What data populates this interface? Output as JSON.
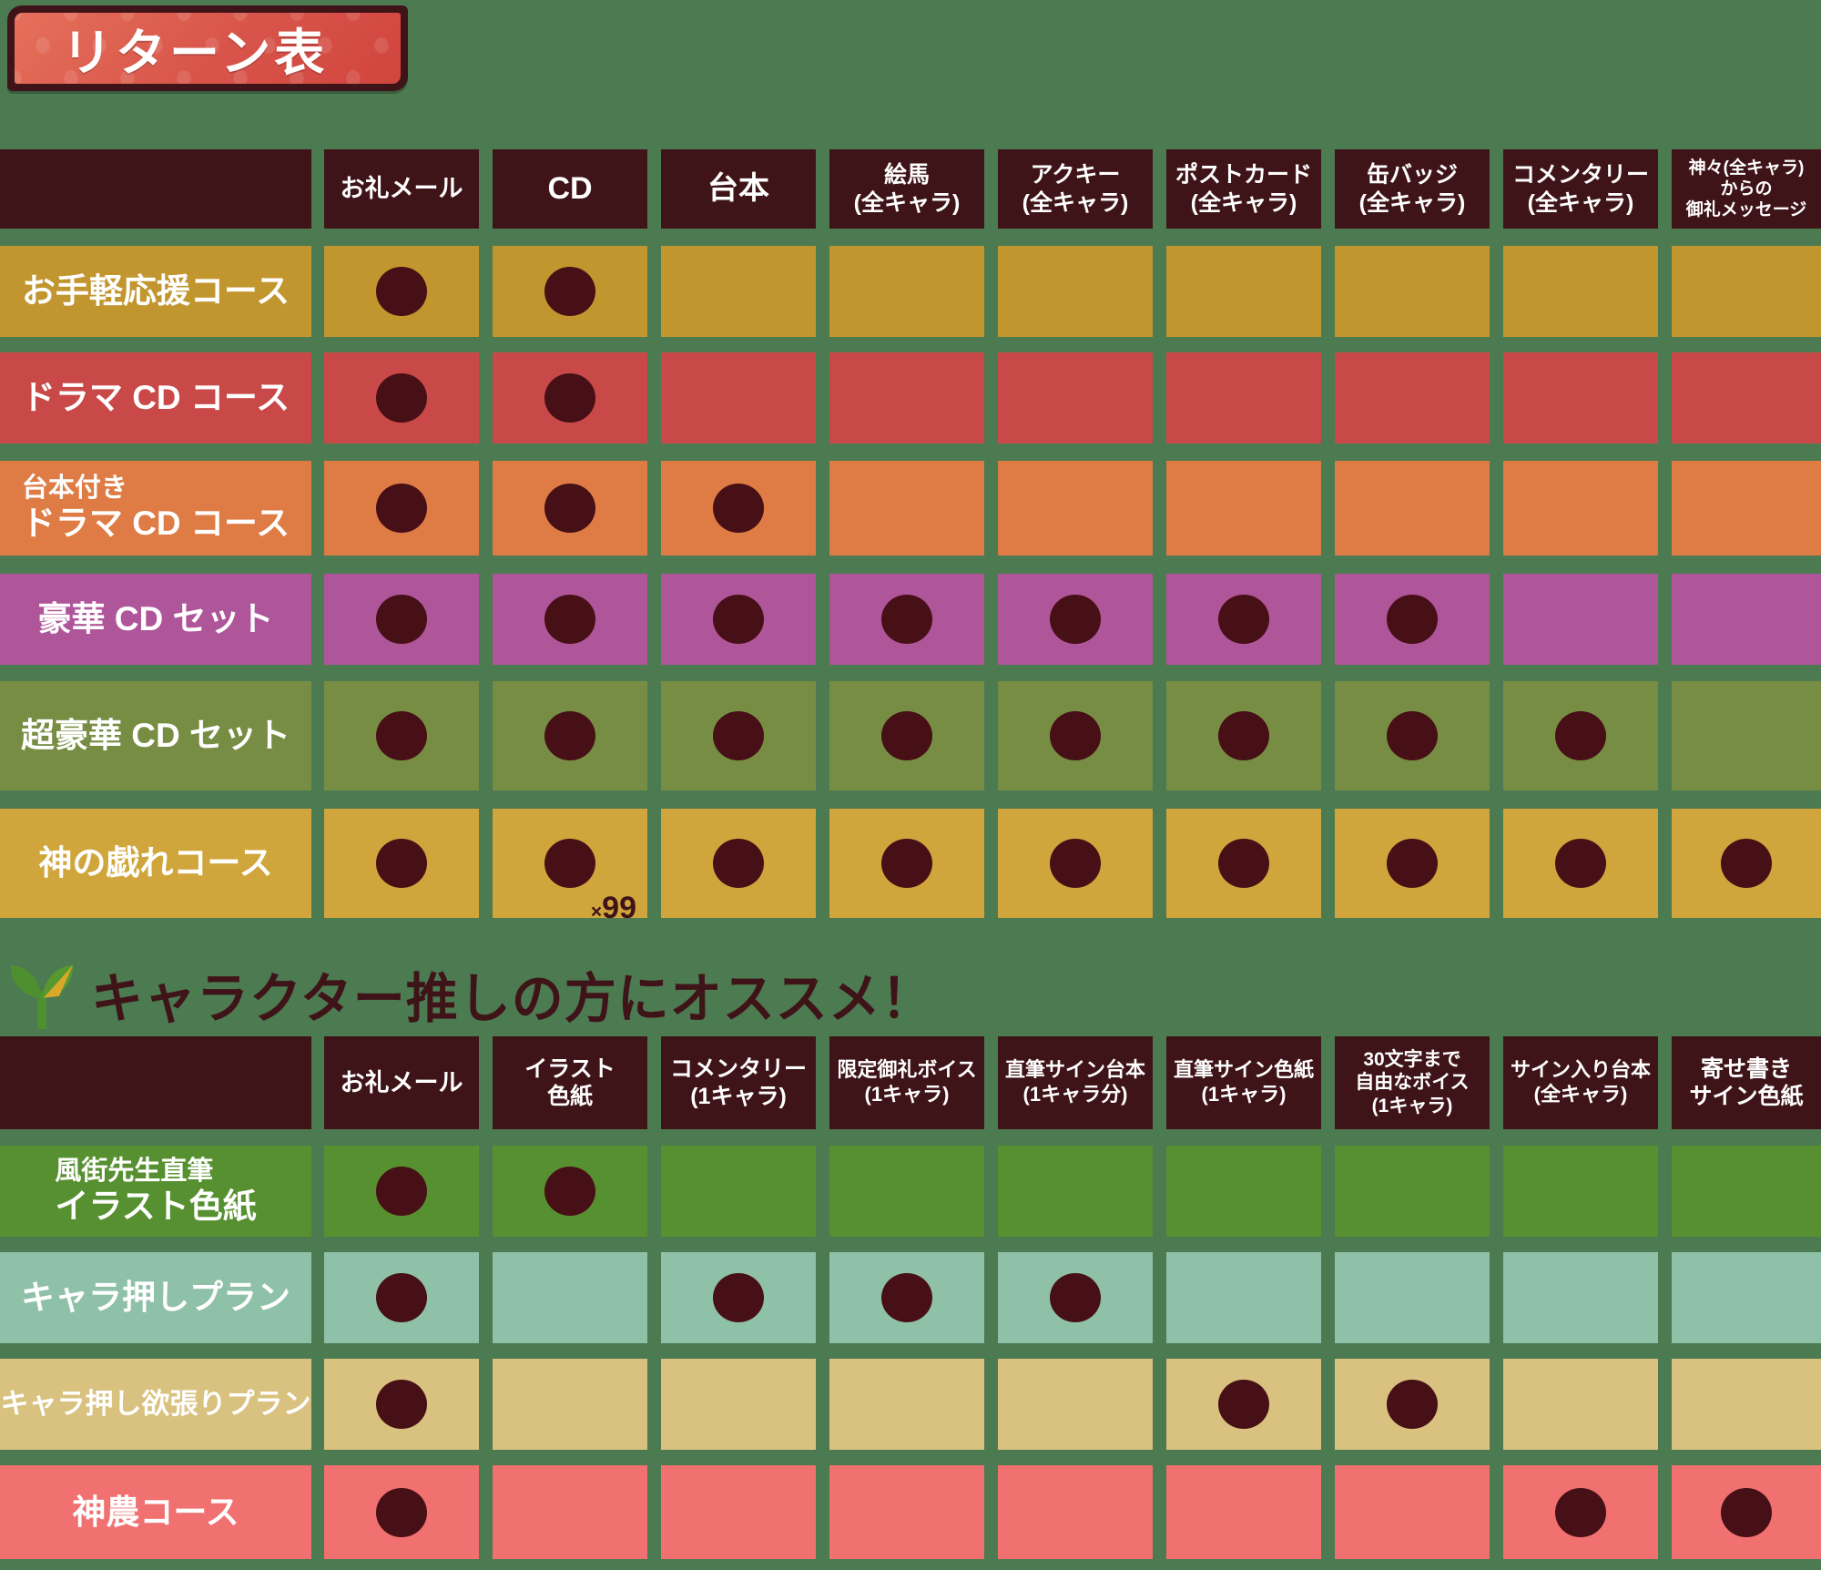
{
  "banner": {
    "title": "リターン表"
  },
  "section2": {
    "heading": "キャラクター推しの方にオススメ！",
    "icon": "sprout-icon"
  },
  "colors": {
    "page_background": "#4c7a51",
    "header_cell": "#3f1418",
    "dot": "#470f16",
    "banner_red_light": "#e5705a",
    "banner_red_dark": "#d1453e",
    "banner_frame": "#3f1418",
    "heading_text": "#3f1418",
    "sprout_green": "#4e8f2f",
    "sprout_yellow": "#d8a929"
  },
  "chart_data": [
    {
      "type": "table",
      "title": "リターン表",
      "columns": [
        {
          "lines": [
            "お礼メール"
          ]
        },
        {
          "lines": [
            "CD"
          ]
        },
        {
          "lines": [
            "台本"
          ]
        },
        {
          "lines": [
            "絵馬",
            "(全キャラ)"
          ]
        },
        {
          "lines": [
            "アクキー",
            "(全キャラ)"
          ]
        },
        {
          "lines": [
            "ポストカード",
            "(全キャラ)"
          ]
        },
        {
          "lines": [
            "缶バッジ",
            "(全キャラ)"
          ]
        },
        {
          "lines": [
            "コメンタリー",
            "(全キャラ)"
          ]
        },
        {
          "lines": [
            "神々(全キャラ)",
            "からの",
            "御礼メッセージ"
          ]
        }
      ],
      "rows": [
        {
          "label_lines": [
            "お手軽応援コース"
          ],
          "color": "#c2962f",
          "included": [
            1,
            1,
            0,
            0,
            0,
            0,
            0,
            0,
            0
          ]
        },
        {
          "label_lines": [
            "ドラマ CD コース"
          ],
          "color": "#c94848",
          "included": [
            1,
            1,
            0,
            0,
            0,
            0,
            0,
            0,
            0
          ]
        },
        {
          "label_lines": [
            "台本付き",
            "ドラマ CD コース"
          ],
          "color": "#df7b44",
          "included": [
            1,
            1,
            1,
            0,
            0,
            0,
            0,
            0,
            0
          ]
        },
        {
          "label_lines": [
            "豪華 CD セット"
          ],
          "color": "#af5599",
          "included": [
            1,
            1,
            1,
            1,
            1,
            1,
            1,
            0,
            0
          ]
        },
        {
          "label_lines": [
            "超豪華 CD セット"
          ],
          "color": "#788d44",
          "included": [
            1,
            1,
            1,
            1,
            1,
            1,
            1,
            1,
            0
          ]
        },
        {
          "label_lines": [
            "神の戯れコース"
          ],
          "color": "#d0a63c",
          "included": [
            1,
            1,
            1,
            1,
            1,
            1,
            1,
            1,
            1
          ],
          "multiplier": {
            "col_index": 1,
            "symbol": "×",
            "value": "99"
          }
        }
      ]
    },
    {
      "type": "table",
      "title": "キャラクター推しの方にオススメ！",
      "columns": [
        {
          "lines": [
            "お礼メール"
          ]
        },
        {
          "lines": [
            "イラスト",
            "色紙"
          ]
        },
        {
          "lines": [
            "コメンタリー",
            "(1キャラ)"
          ]
        },
        {
          "lines": [
            "限定御礼ボイス",
            "(1キャラ)"
          ]
        },
        {
          "lines": [
            "直筆サイン台本",
            "(1キャラ分)"
          ]
        },
        {
          "lines": [
            "直筆サイン色紙",
            "(1キャラ)"
          ]
        },
        {
          "lines": [
            "30文字まで",
            "自由なボイス",
            "(1キャラ)"
          ]
        },
        {
          "lines": [
            "サイン入り台本",
            "(全キャラ)"
          ]
        },
        {
          "lines": [
            "寄せ書き",
            "サイン色紙"
          ]
        }
      ],
      "rows": [
        {
          "label_lines": [
            "風街先生直筆",
            "イラスト色紙"
          ],
          "color": "#579030",
          "included": [
            1,
            1,
            0,
            0,
            0,
            0,
            0,
            0,
            0
          ]
        },
        {
          "label_lines": [
            "キャラ押しプラン"
          ],
          "color": "#8fc0a8",
          "included": [
            1,
            0,
            1,
            1,
            1,
            0,
            0,
            0,
            0
          ]
        },
        {
          "label_lines": [
            "キャラ押し欲張りプラン"
          ],
          "color": "#d9c27f",
          "included": [
            1,
            0,
            0,
            0,
            0,
            1,
            1,
            0,
            0
          ]
        },
        {
          "label_lines": [
            "神農コース"
          ],
          "color": "#f17070",
          "included": [
            1,
            0,
            0,
            0,
            0,
            0,
            0,
            1,
            1
          ]
        }
      ]
    }
  ]
}
